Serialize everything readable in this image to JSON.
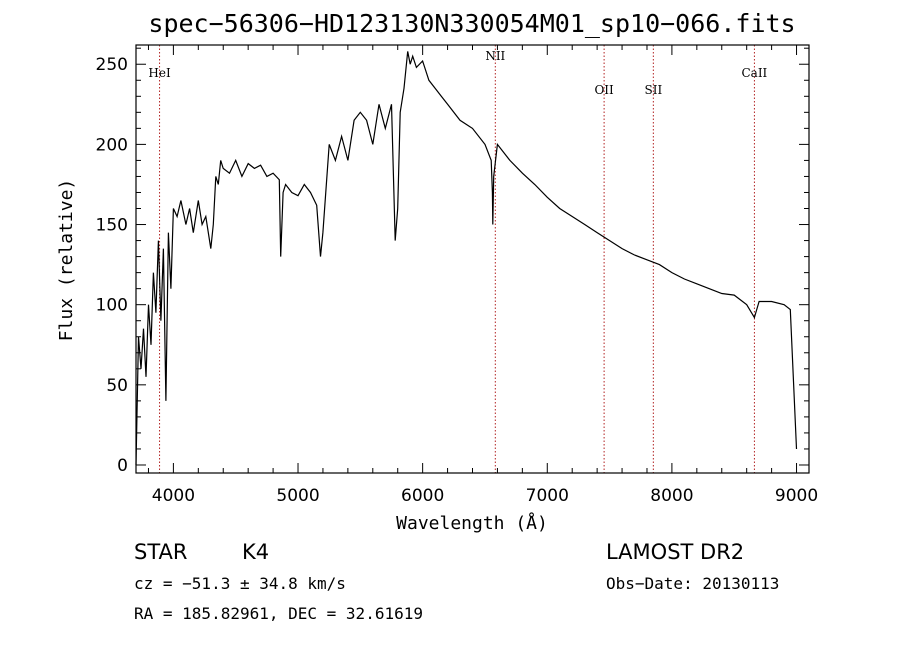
{
  "chart_data": {
    "type": "line",
    "title": "spec−56306−HD123130N330054M01_sp10−066.fits",
    "xlabel": "Wavelength (Å)",
    "ylabel": "Flux (relative)",
    "xlim": [
      3700,
      9100
    ],
    "ylim": [
      -5,
      262
    ],
    "xticks": [
      4000,
      5000,
      6000,
      7000,
      8000,
      9000
    ],
    "yticks": [
      0,
      50,
      100,
      150,
      200,
      250
    ],
    "grid": false,
    "series": [
      {
        "x": [
          3700,
          3720,
          3740,
          3760,
          3780,
          3800,
          3820,
          3840,
          3860,
          3880,
          3900,
          3920,
          3940,
          3960,
          3980,
          4000,
          4030,
          4060,
          4100,
          4130,
          4160,
          4200,
          4230,
          4260,
          4300,
          4320,
          4340,
          4360,
          4380,
          4400,
          4450,
          4500,
          4550,
          4600,
          4650,
          4700,
          4750,
          4800,
          4850,
          4861,
          4880,
          4900,
          4950,
          5000,
          5050,
          5100,
          5150,
          5180,
          5200,
          5250,
          5300,
          5350,
          5400,
          5450,
          5500,
          5550,
          5600,
          5650,
          5700,
          5750,
          5780,
          5800,
          5820,
          5850,
          5880,
          5900,
          5920,
          5950,
          6000,
          6050,
          6100,
          6150,
          6200,
          6300,
          6400,
          6500,
          6550,
          6560,
          6563,
          6570,
          6600,
          6700,
          6800,
          6900,
          7000,
          7100,
          7200,
          7300,
          7400,
          7500,
          7600,
          7700,
          7800,
          7900,
          8000,
          8100,
          8200,
          8300,
          8400,
          8500,
          8600,
          8662,
          8700,
          8800,
          8900,
          8950,
          9000
        ],
        "y": [
          0,
          80,
          60,
          85,
          55,
          100,
          75,
          120,
          95,
          140,
          90,
          135,
          40,
          145,
          110,
          160,
          155,
          165,
          150,
          160,
          145,
          165,
          150,
          155,
          135,
          150,
          180,
          175,
          190,
          185,
          182,
          190,
          180,
          188,
          185,
          187,
          180,
          182,
          178,
          130,
          170,
          175,
          170,
          168,
          175,
          170,
          162,
          130,
          145,
          200,
          190,
          205,
          190,
          215,
          220,
          215,
          200,
          225,
          210,
          225,
          140,
          160,
          220,
          235,
          258,
          250,
          255,
          248,
          252,
          240,
          235,
          230,
          225,
          215,
          210,
          200,
          190,
          170,
          150,
          180,
          200,
          190,
          182,
          175,
          167,
          160,
          155,
          150,
          145,
          140,
          135,
          131,
          128,
          125,
          120,
          116,
          113,
          110,
          107,
          106,
          100,
          92,
          102,
          102,
          100,
          97,
          10
        ]
      }
    ],
    "reference_lines": [
      {
        "label": "HeI",
        "x": 3889
      },
      {
        "label": "NII",
        "x": 6583
      },
      {
        "label": "OII",
        "x": 7456
      },
      {
        "label": "SII",
        "x": 7851
      },
      {
        "label": "CaII",
        "x": 8662
      }
    ],
    "line_color": "#000000",
    "reference_line_color": "#b22222"
  },
  "info": {
    "class_label": "STAR",
    "subclass": "K4",
    "survey": "LAMOST DR2",
    "cz": "cz = −51.3 ± 34.8 km/s",
    "obs_date": "Obs−Date: 20130113",
    "coords": "RA = 185.82961, DEC =  32.61619"
  }
}
